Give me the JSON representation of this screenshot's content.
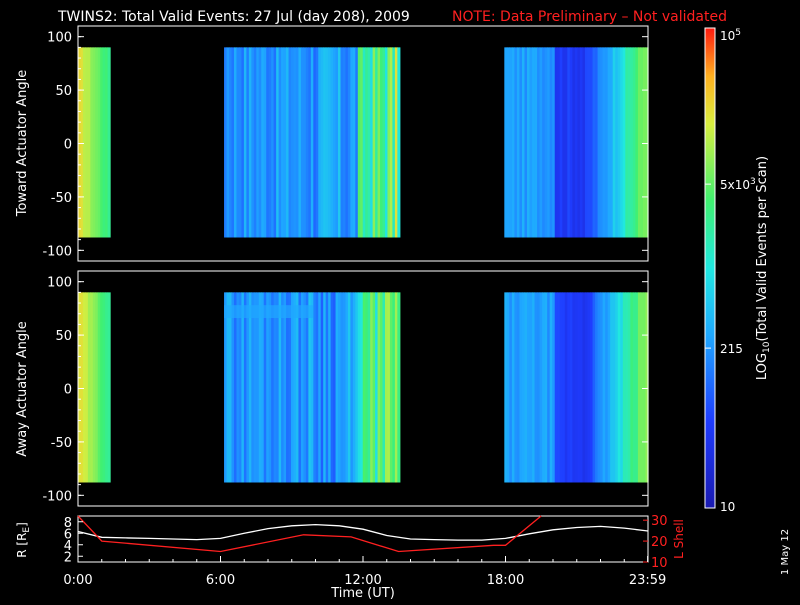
{
  "title": {
    "main": "TWINS2: Total Valid Events: 27 Jul (day 208), 2009",
    "note": "NOTE: Data Preliminary – Not validated"
  },
  "side_stamp": "1 May 12",
  "colors": {
    "background": "#000000",
    "axes": "#ffffff",
    "note": "#ff2020",
    "lshell": "#ff2020",
    "radius": "#ffffff"
  },
  "colorbar": {
    "label": "LOG10(Total Valid Events per Scan)",
    "label_main": "LOG",
    "label_sub": "10",
    "label_rest": "(Total Valid Events per Scan)",
    "ticks": [
      {
        "value": 100000,
        "label": "10^5",
        "base": "10",
        "exp": "5"
      },
      {
        "value": 5000,
        "label": "5x10^3",
        "base": "5x10",
        "exp": "3"
      },
      {
        "value": 215,
        "label": "215",
        "base": "215",
        "exp": ""
      },
      {
        "value": 10,
        "label": "10",
        "base": "10",
        "exp": ""
      }
    ],
    "range": [
      10,
      100000
    ],
    "scale": "log",
    "colormap": "rainbow (blue-cyan-green-yellow-red)"
  },
  "chart_data": [
    {
      "type": "heatmap",
      "panel": "top",
      "ylabel": "Toward Actuator Angle",
      "ylim": [
        -110,
        110
      ],
      "yticks": [
        100,
        50,
        0,
        -50,
        -100
      ],
      "xlim": [
        0,
        24
      ],
      "angle_range": [
        -88,
        90
      ],
      "data_intervals_hours": [
        {
          "start": 0.0,
          "end": 1.35,
          "level": "high (yellow-green)",
          "log_min": 3.3,
          "log_max": 4.3
        },
        {
          "start": 6.15,
          "end": 9.7,
          "level": "low (blue)",
          "log_min": 1.6,
          "log_max": 2.9
        },
        {
          "start": 9.7,
          "end": 13.55,
          "level": "mixed (blue to yellow-green)",
          "log_min": 1.6,
          "log_max": 3.9
        },
        {
          "start": 17.95,
          "end": 24.0,
          "level": "low to high (blue to yellow-green)",
          "log_min": 1.4,
          "log_max": 3.9
        }
      ]
    },
    {
      "type": "heatmap",
      "panel": "bottom",
      "ylabel": "Away Actuator Angle",
      "ylim": [
        -110,
        110
      ],
      "yticks": [
        100,
        50,
        0,
        -50,
        -100
      ],
      "xlim": [
        0,
        24
      ],
      "angle_range": [
        -88,
        90
      ],
      "data_intervals_hours": [
        {
          "start": 0.0,
          "end": 1.35,
          "level": "high (yellow-green)",
          "log_min": 3.3,
          "log_max": 4.3
        },
        {
          "start": 6.15,
          "end": 9.7,
          "level": "low (blue) with cyan band near 70 deg",
          "log_min": 1.6,
          "log_max": 2.9
        },
        {
          "start": 9.7,
          "end": 13.55,
          "level": "mixed (blue to yellow-green)",
          "log_min": 1.6,
          "log_max": 3.9
        },
        {
          "start": 17.95,
          "end": 24.0,
          "level": "low to high (blue to yellow-green)",
          "log_min": 1.4,
          "log_max": 3.9
        }
      ]
    },
    {
      "type": "line",
      "panel": "ephemeris",
      "xlabel": "Time (UT)",
      "xticks": [
        "0:00",
        "6:00",
        "12:00",
        "18:00",
        "23:59"
      ],
      "xtick_hours": [
        0,
        6,
        12,
        18,
        23.983
      ],
      "ylabel_left": "R [R",
      "ylabel_left_sub": "E",
      "ylabel_left_end": "]",
      "ylim_left": [
        1,
        9
      ],
      "yticks_left": [
        8,
        6,
        4,
        2
      ],
      "ylabel_right": "L Shell",
      "ylim_right": [
        10,
        32
      ],
      "yticks_right": [
        30,
        20,
        10
      ],
      "series": [
        {
          "name": "R",
          "axis": "left",
          "x": [
            0,
            1,
            2,
            3,
            4,
            5,
            6,
            7,
            8,
            9,
            10,
            11,
            12,
            13,
            14,
            15,
            16,
            17,
            18,
            19,
            20,
            21,
            22,
            23,
            24
          ],
          "y": [
            6.3,
            5.3,
            5.2,
            5.1,
            5.0,
            4.9,
            5.1,
            6.0,
            6.8,
            7.3,
            7.5,
            7.3,
            6.7,
            5.6,
            5.0,
            4.9,
            4.8,
            4.8,
            5.1,
            5.9,
            6.6,
            7.0,
            7.2,
            6.9,
            6.4
          ]
        },
        {
          "name": "L Shell",
          "axis": "right",
          "x": [
            0,
            1,
            6,
            9.5,
            11.5,
            13.5,
            17.5,
            18,
            19.5
          ],
          "y": [
            32,
            20,
            15,
            23,
            22,
            15,
            18,
            18,
            32
          ]
        }
      ]
    }
  ]
}
